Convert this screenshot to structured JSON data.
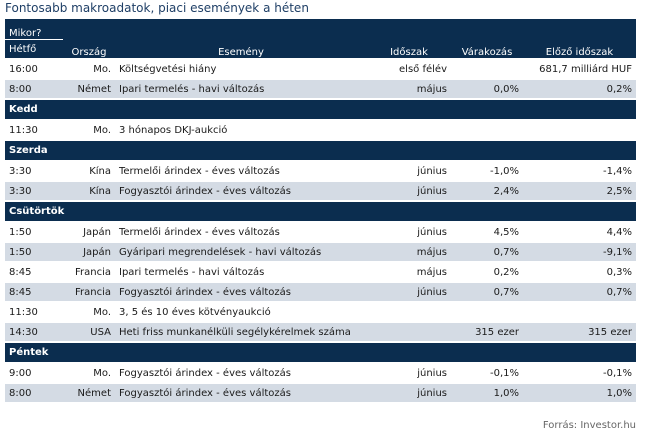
{
  "title": "Fontosabb makroadatok, piaci események a héten",
  "header": {
    "mikor": "Mikor?",
    "orszag": "Ország",
    "esemeny": "Esemény",
    "idoszak": "Időszak",
    "varakozas": "Várakozás",
    "elozo": "Előző időszak",
    "first_day": "Hétfő"
  },
  "sections": [
    {
      "day": "Hétfő",
      "rows": [
        {
          "time": "16:00",
          "country": "Mo.",
          "event": "Költségvetési hiány",
          "period": "első félév",
          "expected": "",
          "previous": "681,7 milliárd HUF"
        },
        {
          "time": "8:00",
          "country": "Német",
          "event": "Ipari termelés - havi változás",
          "period": "május",
          "expected": "0,0%",
          "previous": "0,2%"
        }
      ]
    },
    {
      "day": "Kedd",
      "rows": [
        {
          "time": "11:30",
          "country": "Mo.",
          "event": "3 hónapos DKJ-aukció",
          "period": "",
          "expected": "",
          "previous": ""
        }
      ]
    },
    {
      "day": "Szerda",
      "rows": [
        {
          "time": "3:30",
          "country": "Kína",
          "event": "Termelői árindex - éves változás",
          "period": "június",
          "expected": "-1,0%",
          "previous": "-1,4%"
        },
        {
          "time": "3:30",
          "country": "Kína",
          "event": "Fogyasztói árindex - éves változás",
          "period": "június",
          "expected": "2,4%",
          "previous": "2,5%"
        }
      ]
    },
    {
      "day": "Csütörtök",
      "rows": [
        {
          "time": "1:50",
          "country": "Japán",
          "event": "Termelői árindex - éves változás",
          "period": "június",
          "expected": "4,5%",
          "previous": "4,4%"
        },
        {
          "time": "1:50",
          "country": "Japán",
          "event": "Gyáripari megrendelések - havi változás",
          "period": "május",
          "expected": "0,7%",
          "previous": "-9,1%"
        },
        {
          "time": "8:45",
          "country": "Francia",
          "event": "Ipari termelés - havi változás",
          "period": "május",
          "expected": "0,2%",
          "previous": "0,3%"
        },
        {
          "time": "8:45",
          "country": "Francia",
          "event": "Fogyasztói árindex - éves változás",
          "period": "június",
          "expected": "0,7%",
          "previous": "0,7%"
        },
        {
          "time": "11:30",
          "country": "Mo.",
          "event": "3, 5 és 10 éves kötvényaukció",
          "period": "",
          "expected": "",
          "previous": ""
        },
        {
          "time": "14:30",
          "country": "USA",
          "event": "Heti friss munkanélküli segélykérelmek száma",
          "period": "",
          "expected": "315 ezer",
          "previous": "315 ezer"
        }
      ]
    },
    {
      "day": "Péntek",
      "rows": [
        {
          "time": "9:00",
          "country": "Mo.",
          "event": "Fogyasztói árindex - éves változás",
          "period": "június",
          "expected": "-0,1%",
          "previous": "-0,1%"
        },
        {
          "time": "8:00",
          "country": "Német",
          "event": "Fogyasztói árindex - éves változás",
          "period": "június",
          "expected": "1,0%",
          "previous": "1,0%"
        }
      ]
    }
  ],
  "source": "Forrás: Investor.hu",
  "colors": {
    "header_bg": "#0b2d4f",
    "stripe": "#d4dbe4",
    "title": "#1f3f66"
  }
}
